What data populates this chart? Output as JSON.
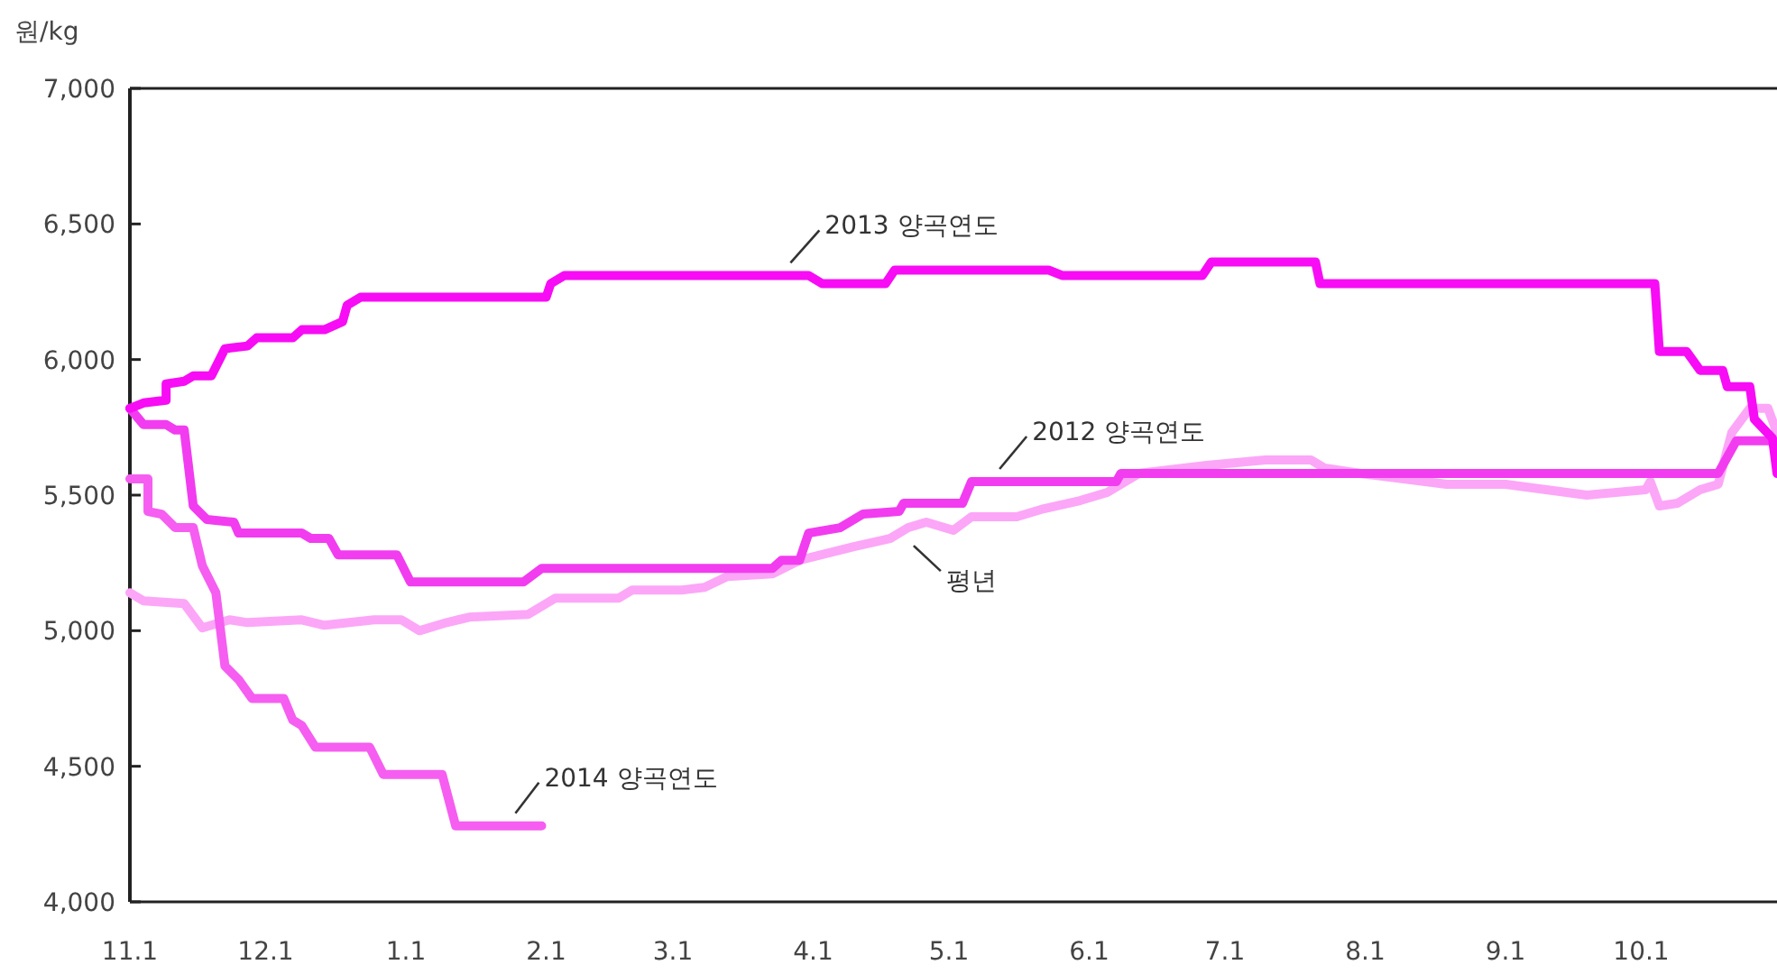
{
  "chart_data": {
    "type": "line",
    "ylabel": "원/kg",
    "xlim": [
      "2014-11-01",
      "2015-10-31"
    ],
    "ylim": [
      4000,
      7000
    ],
    "xticks": [
      {
        "value": "2014-11-01",
        "label": "11.1"
      },
      {
        "value": "2014-12-01",
        "label": "12.1"
      },
      {
        "value": "2015-01-01",
        "label": "1.1"
      },
      {
        "value": "2015-02-01",
        "label": "2.1"
      },
      {
        "value": "2015-03-01",
        "label": "3.1"
      },
      {
        "value": "2015-04-01",
        "label": "4.1"
      },
      {
        "value": "2015-05-01",
        "label": "5.1"
      },
      {
        "value": "2015-06-01",
        "label": "6.1"
      },
      {
        "value": "2015-07-01",
        "label": "7.1"
      },
      {
        "value": "2015-08-01",
        "label": "8.1"
      },
      {
        "value": "2015-09-01",
        "label": "9.1"
      },
      {
        "value": "2015-10-01",
        "label": "10.1"
      }
    ],
    "yticks": [
      {
        "value": 4000,
        "label": "4,000"
      },
      {
        "value": 4500,
        "label": "4,500"
      },
      {
        "value": 5000,
        "label": "5,000"
      },
      {
        "value": 5500,
        "label": "5,500"
      },
      {
        "value": 6000,
        "label": "6,000"
      },
      {
        "value": 6500,
        "label": "6,500"
      },
      {
        "value": 7000,
        "label": "7,000"
      }
    ],
    "grid": false,
    "marker": "none",
    "line_style": "solid",
    "series": [
      {
        "color": "#fca6f8",
        "x": [
          "2014-11-01",
          "2014-11-04",
          "2014-11-13",
          "2014-11-17",
          "2014-11-23",
          "2014-11-27",
          "2014-12-09",
          "2014-12-14",
          "2014-12-25",
          "2014-12-31",
          "2015-01-04",
          "2015-01-10",
          "2015-01-15",
          "2015-01-28",
          "2015-02-03",
          "2015-02-17",
          "2015-02-20",
          "2015-03-03",
          "2015-03-08",
          "2015-03-13",
          "2015-03-23",
          "2015-03-29",
          "2015-04-10",
          "2015-04-18",
          "2015-04-22",
          "2015-04-26",
          "2015-05-02",
          "2015-05-06",
          "2015-05-16",
          "2015-05-22",
          "2015-05-30",
          "2015-06-05",
          "2015-06-12",
          "2015-06-27",
          "2015-07-10",
          "2015-07-20",
          "2015-07-23",
          "2015-07-31",
          "2015-08-19",
          "2015-09-01",
          "2015-09-19",
          "2015-10-02",
          "2015-10-03",
          "2015-10-05",
          "2015-10-09",
          "2015-10-14",
          "2015-10-18",
          "2015-10-21",
          "2015-10-25",
          "2015-10-29",
          "2015-10-31"
        ],
        "values": [
          5140,
          5110,
          5100,
          5010,
          5040,
          5030,
          5040,
          5020,
          5040,
          5040,
          5000,
          5030,
          5050,
          5060,
          5120,
          5120,
          5150,
          5150,
          5160,
          5200,
          5210,
          5260,
          5310,
          5340,
          5380,
          5400,
          5370,
          5420,
          5420,
          5450,
          5480,
          5510,
          5580,
          5610,
          5630,
          5630,
          5600,
          5580,
          5540,
          5540,
          5500,
          5520,
          5550,
          5460,
          5470,
          5520,
          5540,
          5730,
          5820,
          5820,
          5730
        ]
      },
      {
        "color": "#f23cf0",
        "x": [
          "2014-11-01",
          "2014-11-04",
          "2014-11-09",
          "2014-11-11",
          "2014-11-13",
          "2014-11-15",
          "2014-11-18",
          "2014-11-24",
          "2014-11-25",
          "2014-12-09",
          "2014-12-11",
          "2014-12-15",
          "2014-12-17",
          "2014-12-30",
          "2015-01-02",
          "2015-01-27",
          "2015-01-31",
          "2015-03-23",
          "2015-03-25",
          "2015-03-29",
          "2015-03-31",
          "2015-04-07",
          "2015-04-12",
          "2015-04-20",
          "2015-04-21",
          "2015-05-04",
          "2015-05-06",
          "2015-06-07",
          "2015-06-08",
          "2015-10-18",
          "2015-10-22",
          "2015-10-30",
          "2015-10-31"
        ],
        "values": [
          5820,
          5760,
          5760,
          5740,
          5740,
          5460,
          5410,
          5400,
          5360,
          5360,
          5340,
          5340,
          5280,
          5280,
          5180,
          5180,
          5230,
          5230,
          5260,
          5260,
          5360,
          5380,
          5430,
          5440,
          5470,
          5470,
          5550,
          5550,
          5580,
          5580,
          5700,
          5700,
          5650
        ]
      },
      {
        "color": "#f55ef0",
        "x": [
          "2014-11-01",
          "2014-11-05",
          "2014-11-05",
          "2014-11-08",
          "2014-11-11",
          "2014-11-15",
          "2014-11-17",
          "2014-11-20",
          "2014-11-22",
          "2014-11-25",
          "2014-11-28",
          "2014-12-05",
          "2014-12-07",
          "2014-12-09",
          "2014-12-12",
          "2014-12-24",
          "2014-12-27",
          "2015-01-09",
          "2015-01-12",
          "2015-01-31"
        ],
        "values": [
          5560,
          5560,
          5440,
          5430,
          5380,
          5380,
          5240,
          5140,
          4870,
          4820,
          4750,
          4750,
          4670,
          4650,
          4570,
          4570,
          4470,
          4470,
          4280,
          4280
        ]
      },
      {
        "color": "#f70cf5",
        "x": [
          "2014-11-01",
          "2014-11-04",
          "2014-11-09",
          "2014-11-09",
          "2014-11-13",
          "2014-11-15",
          "2014-11-19",
          "2014-11-22",
          "2014-11-27",
          "2014-11-29",
          "2014-12-07",
          "2014-12-09",
          "2014-12-14",
          "2014-12-18",
          "2014-12-19",
          "2014-12-22",
          "2015-02-01",
          "2015-02-02",
          "2015-02-05",
          "2015-03-31",
          "2015-04-03",
          "2015-04-17",
          "2015-04-19",
          "2015-05-23",
          "2015-05-26",
          "2015-06-26",
          "2015-06-28",
          "2015-07-21",
          "2015-07-22",
          "2015-10-04",
          "2015-10-05",
          "2015-10-11",
          "2015-10-14",
          "2015-10-19",
          "2015-10-20",
          "2015-10-25",
          "2015-10-26",
          "2015-10-30",
          "2015-10-31"
        ],
        "values": [
          5820,
          5840,
          5850,
          5910,
          5920,
          5940,
          5940,
          6040,
          6050,
          6080,
          6080,
          6110,
          6110,
          6140,
          6200,
          6230,
          6230,
          6280,
          6310,
          6310,
          6280,
          6280,
          6330,
          6330,
          6310,
          6310,
          6360,
          6360,
          6280,
          6280,
          6030,
          6030,
          5960,
          5960,
          5900,
          5900,
          5780,
          5710,
          5580
        ]
      }
    ],
    "annotations": [
      {
        "text": "2013 양곡연도",
        "x": "2015-03-25",
        "y": 6310
      },
      {
        "text": "2012 양곡연도",
        "x": "2015-05-11",
        "y": 5550
      },
      {
        "text": "평년",
        "x": "2015-04-24",
        "y": 5380
      },
      {
        "text": "2014 양곡연도",
        "x": "2015-01-24",
        "y": 4280
      }
    ]
  }
}
